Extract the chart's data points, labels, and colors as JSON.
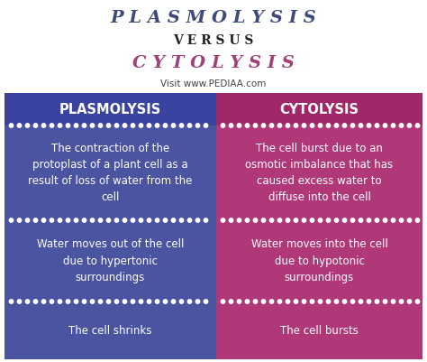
{
  "title1": "P L A S M O L Y S I S",
  "title2": "V E R S U S",
  "title3": "C Y T O L Y S I S",
  "subtitle": "Visit www.PEDIAA.com",
  "title1_color": "#3d4a7a",
  "title2_color": "#222222",
  "title3_color": "#a0417a",
  "left_header": "PLASMOLYSIS",
  "right_header": "CYTOLYSIS",
  "left_bg": "#4a54a0",
  "right_bg": "#b03878",
  "header_bg_left": "#3a44a0",
  "header_bg_right": "#a02868",
  "text_color": "#ffffff",
  "left_rows": [
    "The contraction of the\nprotoplast of a plant cell as a\nresult of loss of water from the\ncell",
    "Water moves out of the cell\ndue to hypertonic\nsurroundings",
    "The cell shrinks"
  ],
  "right_rows": [
    "The cell burst due to an\nosmotic imbalance that has\ncaused excess water to\ndiffuse into the cell",
    "Water moves into the cell\ndue to hypotonic\nsurroundings",
    "The cell bursts"
  ],
  "bg_color": "#ffffff",
  "dot_color": "#ffffff"
}
